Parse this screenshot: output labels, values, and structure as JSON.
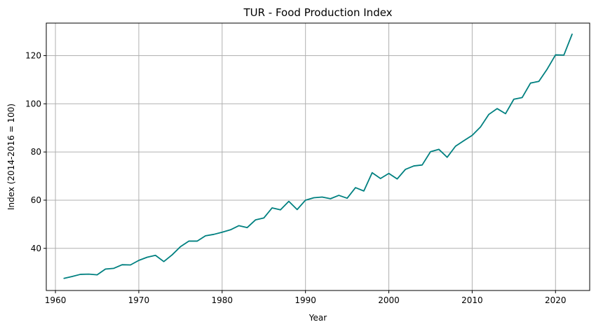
{
  "chart_data": {
    "type": "line",
    "title": "TUR - Food Production Index",
    "xlabel": "Year",
    "ylabel": "Index (2014-2016 = 100)",
    "xlim": [
      1958.9,
      2024.1
    ],
    "ylim": [
      22.5,
      133.5
    ],
    "x_ticks": [
      1960,
      1970,
      1980,
      1990,
      2000,
      2010,
      2020
    ],
    "y_ticks": [
      40,
      60,
      80,
      100,
      120
    ],
    "grid": true,
    "line_color": "#008080",
    "series": [
      {
        "x": [
          1961,
          1962,
          1963,
          1964,
          1965,
          1966,
          1967,
          1968,
          1969,
          1970,
          1971,
          1972,
          1973,
          1974,
          1975,
          1976,
          1977,
          1978,
          1979,
          1980,
          1981,
          1982,
          1983,
          1984,
          1985,
          1986,
          1987,
          1988,
          1989,
          1990,
          1991,
          1992,
          1993,
          1994,
          1995,
          1996,
          1997,
          1998,
          1999,
          2000,
          2001,
          2002,
          2003,
          2004,
          2005,
          2006,
          2007,
          2008,
          2009,
          2010,
          2011,
          2012,
          2013,
          2014,
          2015,
          2016,
          2017,
          2018,
          2019,
          2020,
          2021,
          2022
        ],
        "values": [
          27.5,
          28.3,
          29.2,
          29.3,
          29.0,
          31.4,
          31.7,
          33.2,
          33.1,
          35.0,
          36.3,
          37.1,
          34.5,
          37.3,
          40.7,
          43.0,
          43.0,
          45.2,
          45.8,
          46.7,
          47.7,
          49.4,
          48.6,
          51.8,
          52.6,
          56.8,
          56.0,
          59.5,
          56.1,
          60.0,
          61.0,
          61.3,
          60.6,
          62.0,
          60.8,
          65.2,
          63.8,
          71.4,
          69.0,
          71.1,
          68.8,
          72.8,
          74.2,
          74.6,
          80.1,
          81.1,
          77.8,
          82.4,
          84.7,
          86.9,
          90.4,
          95.6,
          98.0,
          95.9,
          101.9,
          102.6,
          108.6,
          109.3,
          114.4,
          120.3,
          120.2,
          129.0
        ]
      }
    ]
  }
}
